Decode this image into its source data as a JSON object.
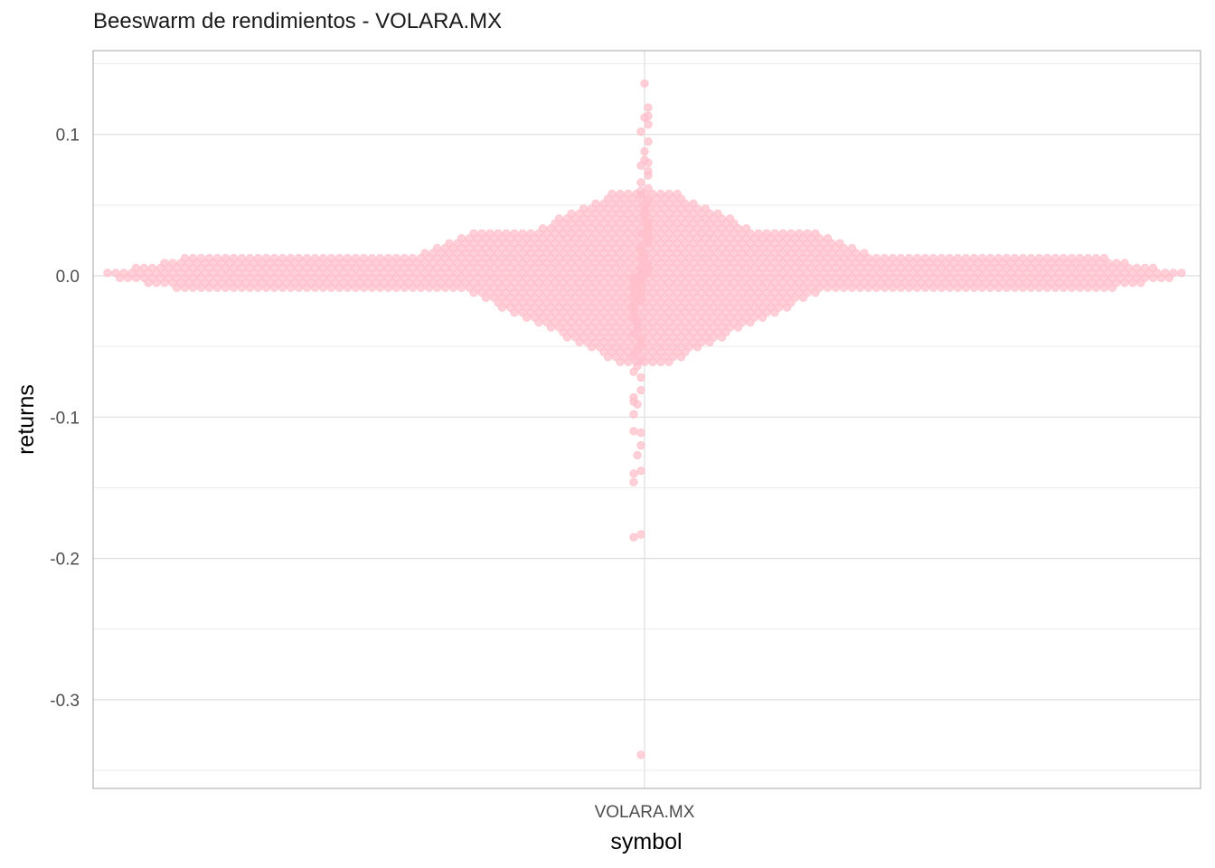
{
  "chart_data": {
    "type": "scatter",
    "subtype": "beeswarm",
    "title": "Beeswarm de rendimientos - VOLARA.MX",
    "xlabel": "symbol",
    "ylabel": "returns",
    "categories": [
      "VOLARA.MX"
    ],
    "y_ticks": [
      0.1,
      0.0,
      -0.1,
      -0.2,
      -0.3
    ],
    "y_tick_labels": [
      "0.1",
      "0.0",
      "-0.1",
      "-0.2",
      "-0.3"
    ],
    "ylim": [
      -0.36,
      0.16
    ],
    "grid": true,
    "point_color": "#FFC0CB",
    "series": [
      {
        "category": "VOLARA.MX",
        "values": [
          0.136,
          0.119,
          0.113,
          0.112,
          0.107,
          0.102,
          0.095,
          0.088,
          0.082,
          0.08,
          0.078,
          0.074,
          0.071,
          0.066,
          0.062,
          0.06,
          0.057,
          0.053,
          0.049,
          0.046,
          0.043,
          0.04,
          0.038,
          0.035,
          0.032,
          0.03,
          0.029,
          0.026,
          0.023,
          0.021,
          0.018,
          0.016,
          0.013,
          0.012,
          0.01,
          0.008,
          0.006,
          0.005,
          0.004,
          0.003,
          0.002,
          0.001,
          0.0,
          -0.001,
          -0.002,
          -0.003,
          -0.004,
          -0.005,
          -0.006,
          -0.008,
          -0.01,
          -0.012,
          -0.014,
          -0.016,
          -0.018,
          -0.02,
          -0.023,
          -0.026,
          -0.029,
          -0.031,
          -0.034,
          -0.037,
          -0.041,
          -0.045,
          -0.048,
          -0.052,
          -0.056,
          -0.06,
          -0.064,
          -0.068,
          -0.072,
          -0.081,
          -0.086,
          -0.089,
          -0.091,
          -0.098,
          -0.11,
          -0.111,
          -0.12,
          -0.127,
          -0.138,
          -0.14,
          -0.146,
          -0.183,
          -0.185,
          -0.339
        ]
      }
    ]
  }
}
